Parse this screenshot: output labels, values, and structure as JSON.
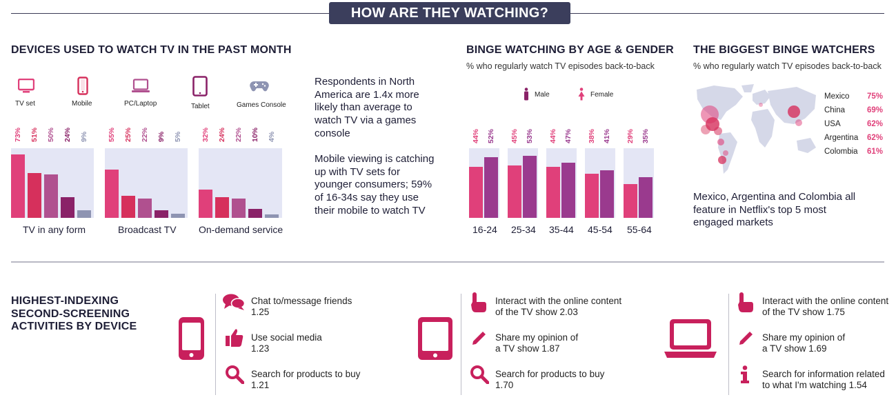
{
  "banner": "HOW ARE THEY WATCHING?",
  "devices": {
    "title": "DEVICES USED TO WATCH TV IN THE PAST MONTH",
    "legend": [
      {
        "label": "TV set",
        "color": "#e0407a",
        "icon": "tv-icon"
      },
      {
        "label": "Mobile",
        "color": "#d6305c",
        "icon": "mobile-icon"
      },
      {
        "label": "PC/Laptop",
        "color": "#b0508f",
        "icon": "laptop-icon"
      },
      {
        "label": "Tablet",
        "color": "#8a2268",
        "icon": "tablet-icon"
      },
      {
        "label": "Games Console",
        "color": "#8e94b2",
        "icon": "gamepad-icon"
      }
    ]
  },
  "chart_data": [
    {
      "type": "bar",
      "title": "DEVICES USED TO WATCH TV IN THE PAST MONTH",
      "categories": [
        "TV in any form",
        "Broadcast TV",
        "On-demand service"
      ],
      "series": [
        {
          "name": "TV set",
          "values": [
            73,
            55,
            32
          ],
          "labels": [
            "73%",
            "55%",
            "32%"
          ]
        },
        {
          "name": "Mobile",
          "values": [
            51,
            25,
            24
          ],
          "labels": [
            "51%",
            "25%",
            "24%"
          ]
        },
        {
          "name": "PC/Laptop",
          "values": [
            50,
            22,
            22
          ],
          "labels": [
            "50%",
            "22%",
            "22%"
          ]
        },
        {
          "name": "Tablet",
          "values": [
            24,
            9,
            10
          ],
          "labels": [
            "24%",
            "9%",
            "10%"
          ]
        },
        {
          "name": "Games Console",
          "values": [
            9,
            5,
            4
          ],
          "labels": [
            "9%",
            "5%",
            "4%"
          ]
        }
      ],
      "ylim": [
        0,
        80
      ]
    },
    {
      "type": "bar",
      "title": "BINGE WATCHING BY AGE & GENDER",
      "subtitle": "% who regularly watch TV episodes back-to-back",
      "categories": [
        "16-24",
        "25-34",
        "35-44",
        "45-54",
        "55-64"
      ],
      "series": [
        {
          "name": "Male",
          "values": [
            44,
            45,
            44,
            38,
            29
          ],
          "labels": [
            "44%",
            "45%",
            "44%",
            "38%",
            "29%"
          ]
        },
        {
          "name": "Female",
          "values": [
            52,
            53,
            47,
            41,
            35
          ],
          "labels": [
            "52%",
            "53%",
            "47%",
            "41%",
            "35%"
          ]
        }
      ],
      "ylim": [
        0,
        60
      ]
    },
    {
      "type": "table",
      "title": "THE BIGGEST BINGE WATCHERS",
      "subtitle": "% who regularly watch TV episodes back-to-back",
      "categories": [
        "Mexico",
        "China",
        "USA",
        "Argentina",
        "Colombia"
      ],
      "values": [
        75,
        69,
        62,
        62,
        61
      ],
      "labels": [
        "75%",
        "69%",
        "62%",
        "62%",
        "61%"
      ]
    }
  ],
  "side_text": {
    "para1": "Respondents in North America are 1.4x more likely than average to watch TV via a games console",
    "para2": "Mobile viewing is catching up with TV sets for younger consumers; 59% of 16-34s say they use their mobile to watch TV"
  },
  "binge_age": {
    "title": "BINGE WATCHING BY AGE & GENDER",
    "subtitle": "% who regularly watch TV episodes back-to-back",
    "male_label": "Male",
    "female_label": "Female",
    "male_color": "#e0407a",
    "female_color": "#9a3a8e"
  },
  "binge_country": {
    "title": "THE BIGGEST BINGE WATCHERS",
    "subtitle": "% who regularly watch TV episodes back-to-back",
    "note": "Mexico, Argentina and Colombia all feature in Netflix's top 5 most engaged markets"
  },
  "second_screen": {
    "title": "HIGHEST-INDEXING SECOND-SCREENING ACTIVITIES BY DEVICE",
    "mobile": [
      {
        "icon": "chat-bubbles-icon",
        "text": "Chat to/message friends",
        "value": "1.25"
      },
      {
        "icon": "thumbs-up-icon",
        "text": "Use social media",
        "value": "1.23"
      },
      {
        "icon": "magnifier-icon",
        "text": "Search for products to buy",
        "value": "1.21"
      }
    ],
    "tablet": [
      {
        "icon": "pointing-hand-icon",
        "text": "Interact with the online content of the TV show 2.03"
      },
      {
        "icon": "pencil-icon",
        "text": "Share my opinion of a TV show 1.87"
      },
      {
        "icon": "magnifier-icon",
        "text": "Search for products to buy",
        "value": "1.70"
      }
    ],
    "laptop": [
      {
        "icon": "pointing-hand-icon",
        "text": "Interact with the online content of the TV show 1.75"
      },
      {
        "icon": "pencil-icon",
        "text": "Share my opinion of a TV show 1.69"
      },
      {
        "icon": "info-icon",
        "text": "Search for information related to what I'm watching 1.54"
      }
    ]
  }
}
